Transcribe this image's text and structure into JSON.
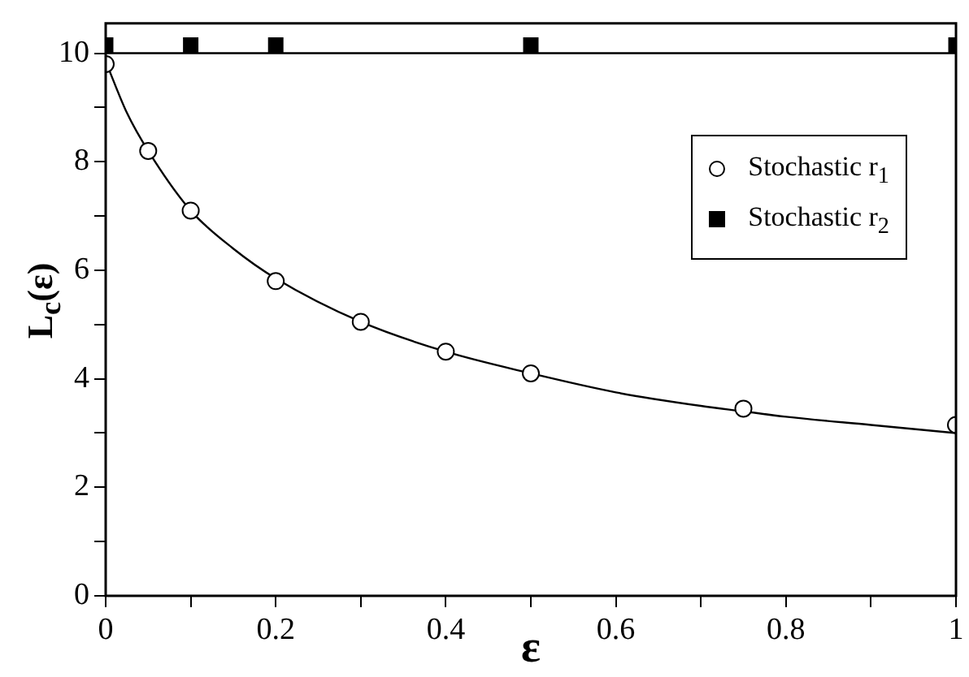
{
  "chart_data": {
    "type": "scatter",
    "xlabel": "ε",
    "ylabel": "L$_{c}$(ε)",
    "xlim": [
      0,
      1
    ],
    "ylim": [
      0,
      10.55
    ],
    "xticks": [
      0,
      {
        "value": 0.1,
        "label": null
      },
      0.2,
      {
        "value": 0.3,
        "label": null
      },
      0.4,
      {
        "value": 0.5,
        "label": null
      },
      0.6,
      {
        "value": 0.7,
        "label": null
      },
      0.8,
      {
        "value": 0.9,
        "label": null
      },
      1
    ],
    "yticks": [
      0,
      {
        "value": 1,
        "label": null
      },
      2,
      {
        "value": 3,
        "label": null
      },
      4,
      {
        "value": 5,
        "label": null
      },
      6,
      {
        "value": 7,
        "label": null
      },
      8,
      {
        "value": 9,
        "label": null
      },
      10
    ],
    "series": [
      {
        "name": "Stochastic r$_{1}$",
        "color": "#000000",
        "marker": "circle",
        "x": [
          0,
          0.05,
          0.1,
          0.2,
          0.3,
          0.4,
          0.5,
          0.75,
          1
        ],
        "values": [
          9.8,
          8.2,
          7.1,
          5.8,
          5.05,
          4.5,
          4.1,
          3.45,
          3.15
        ]
      },
      {
        "name": "Stochastic r$_{2}$",
        "color": "#000000",
        "marker": "square",
        "x": [
          0,
          0.1,
          0.2,
          0.5,
          1
        ],
        "values": [
          10.15,
          10.15,
          10.15,
          10.15,
          10.15
        ]
      },
      {
        "type": "line",
        "color": "#000000",
        "marker": "none",
        "x": [
          0,
          0.025,
          0.05,
          0.1,
          0.15,
          0.2,
          0.3,
          0.4,
          0.5,
          0.6,
          0.7,
          0.75,
          0.8,
          0.9,
          1
        ],
        "values": [
          9.85,
          8.9,
          8.2,
          7.1,
          6.4,
          5.85,
          5.05,
          4.5,
          4.1,
          3.75,
          3.5,
          3.4,
          3.3,
          3.15,
          3.0
        ]
      }
    ],
    "ref_lines": [
      {
        "axis": "y",
        "value": 10,
        "color": "#000000"
      }
    ],
    "grid": false,
    "legend": "top right"
  }
}
